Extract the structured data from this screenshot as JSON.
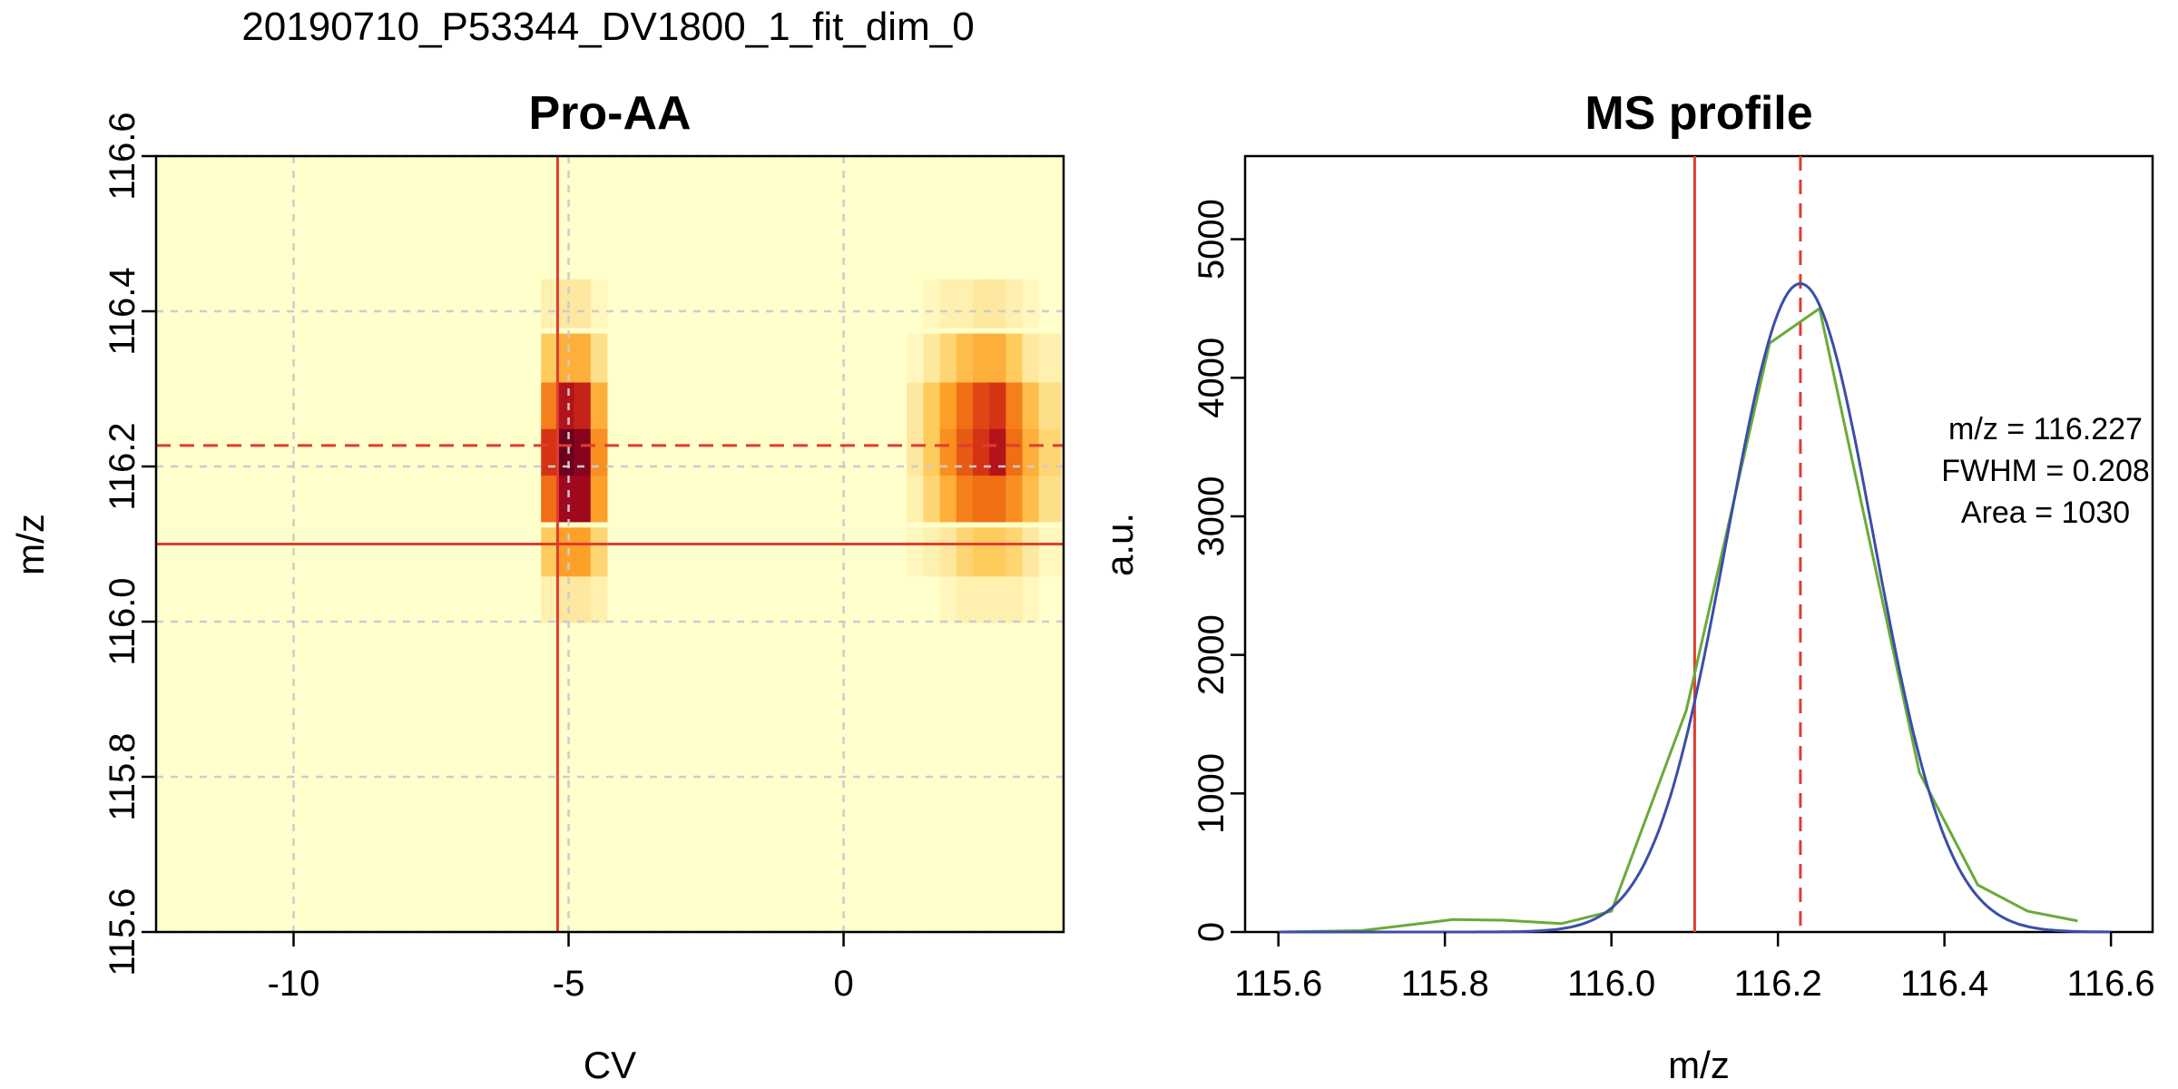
{
  "figure": {
    "title": "20190710_P53344_DV1800_1_fit_dim_0"
  },
  "colors": {
    "background": "#ffffcc",
    "marker_line": "#e03c31",
    "fit_curve": "#3b4ea8",
    "data_curve": "#6aaa3a",
    "grid": "#cccccc"
  },
  "chart_data": [
    {
      "type": "heatmap",
      "title": "Pro-AA",
      "xlabel": "CV",
      "ylabel": "m/z",
      "xlim": [
        -12.5,
        4.0
      ],
      "ylim": [
        115.6,
        116.6
      ],
      "xticks": [
        -10,
        -5,
        0
      ],
      "yticks": [
        115.6,
        115.8,
        116.0,
        116.2,
        116.4,
        116.6
      ],
      "grid": true,
      "vline_solid": -5.2,
      "hline_solid": 116.1,
      "hline_dashed": 116.227,
      "cell_height": 0.0625,
      "mz_rows": [
        116.03,
        116.09,
        116.16,
        116.22,
        116.28,
        116.34,
        116.41
      ],
      "columns": [
        {
          "cv": -5.35,
          "width": 0.3,
          "intensities": [
            0.1,
            0.3,
            0.6,
            0.75,
            0.55,
            0.3,
            0.1
          ]
        },
        {
          "cv": -5.05,
          "width": 0.3,
          "intensities": [
            0.15,
            0.45,
            0.9,
            1.0,
            0.85,
            0.4,
            0.15
          ]
        },
        {
          "cv": -4.75,
          "width": 0.3,
          "intensities": [
            0.15,
            0.45,
            0.9,
            0.95,
            0.8,
            0.4,
            0.15
          ]
        },
        {
          "cv": -4.45,
          "width": 0.3,
          "intensities": [
            0.1,
            0.25,
            0.45,
            0.5,
            0.4,
            0.2,
            0.05
          ]
        },
        {
          "cv": 1.3,
          "width": 0.3,
          "intensities": [
            0.0,
            0.05,
            0.1,
            0.15,
            0.15,
            0.05,
            0.0
          ]
        },
        {
          "cv": 1.6,
          "width": 0.3,
          "intensities": [
            0.0,
            0.1,
            0.25,
            0.3,
            0.3,
            0.15,
            0.05
          ]
        },
        {
          "cv": 1.9,
          "width": 0.3,
          "intensities": [
            0.05,
            0.15,
            0.4,
            0.5,
            0.45,
            0.25,
            0.1
          ]
        },
        {
          "cv": 2.2,
          "width": 0.3,
          "intensities": [
            0.1,
            0.25,
            0.55,
            0.65,
            0.6,
            0.35,
            0.1
          ]
        },
        {
          "cv": 2.5,
          "width": 0.3,
          "intensities": [
            0.1,
            0.3,
            0.6,
            0.75,
            0.7,
            0.4,
            0.15
          ]
        },
        {
          "cv": 2.8,
          "width": 0.3,
          "intensities": [
            0.1,
            0.3,
            0.6,
            0.85,
            0.75,
            0.4,
            0.15
          ]
        },
        {
          "cv": 3.1,
          "width": 0.3,
          "intensities": [
            0.1,
            0.25,
            0.5,
            0.6,
            0.55,
            0.3,
            0.1
          ]
        },
        {
          "cv": 3.4,
          "width": 0.3,
          "intensities": [
            0.05,
            0.15,
            0.35,
            0.4,
            0.35,
            0.15,
            0.05
          ]
        },
        {
          "cv": 3.75,
          "width": 0.4,
          "intensities": [
            0.0,
            0.05,
            0.2,
            0.25,
            0.2,
            0.1,
            0.0
          ]
        }
      ]
    },
    {
      "type": "line",
      "title": "MS profile",
      "xlabel": "m/z",
      "ylabel": "a.u.",
      "xlim": [
        115.56,
        116.65
      ],
      "ylim": [
        0,
        5600
      ],
      "xticks": [
        115.6,
        115.8,
        116.0,
        116.2,
        116.4,
        116.6
      ],
      "yticks": [
        0,
        1000,
        2000,
        3000,
        4000,
        5000
      ],
      "vline_solid": 116.1,
      "vline_dashed": 116.227,
      "series": [
        {
          "role": "data",
          "x": [
            115.6,
            115.7,
            115.81,
            115.87,
            115.94,
            116.0,
            116.09,
            116.19,
            116.25,
            116.37,
            116.44,
            116.5,
            116.56
          ],
          "y": [
            0,
            10,
            90,
            85,
            60,
            150,
            1600,
            4250,
            4500,
            1150,
            340,
            150,
            80
          ]
        },
        {
          "role": "fit",
          "center": 116.227,
          "fwhm": 0.208,
          "peak": 4680
        }
      ],
      "annotations": [
        "m/z = 116.227",
        "FWHM = 0.208",
        "Area = 1030"
      ]
    }
  ]
}
